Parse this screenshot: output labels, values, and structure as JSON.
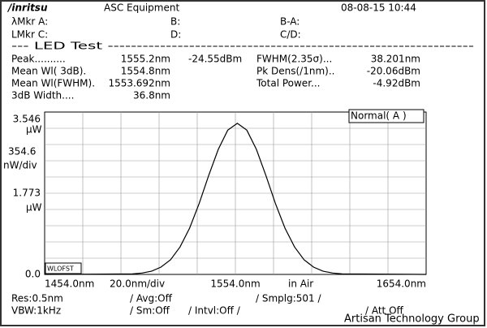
{
  "header": {
    "logo": "/inritsu",
    "title": "ASC Equipment",
    "datetime": "08-08-15 10:44"
  },
  "markers": {
    "a": "λMkr  A:",
    "b": "B:",
    "ba": "B-A:",
    "c": "LMkr  C:",
    "d": "D:",
    "cd": "C/D:"
  },
  "section": "--- LED Test ---------------------------------------------------------------",
  "results": [
    [
      "Peak..........",
      "1555.2nm",
      "-24.55dBm",
      "FWHM(2.35σ)...",
      "38.201nm"
    ],
    [
      "Mean Wl( 3dB).",
      "1554.8nm",
      "",
      "Pk Dens(/1nm)..",
      "-20.06dBm"
    ],
    [
      "Mean Wl(FWHM).",
      "1553.692nm",
      "",
      "Total Power...",
      "-4.92dBm"
    ],
    [
      "3dB Width....",
      "36.8nm",
      "",
      "",
      ""
    ]
  ],
  "plot": {
    "type": "line",
    "mode": "Normal( A )",
    "offset_label": "WLOFST",
    "y_unit_top": "µW",
    "y_div": "354.6",
    "y_div_unit": "nW/div",
    "y_unit_mid": "µW",
    "x_div": "20.0nm/div",
    "medium": "in Air",
    "xlim": [
      1454,
      1654
    ],
    "ylim": [
      0,
      3.546
    ],
    "yticks": [
      3.546,
      1.773,
      {
        "value": 0,
        "label": "0.0"
      }
    ],
    "xticks": [
      {
        "value": 1454,
        "label": "1454.0nm"
      },
      {
        "value": 1554,
        "label": "1554.0nm"
      },
      {
        "value": 1654,
        "label": "1654.0nm"
      }
    ],
    "color": "#000000",
    "x": [
      1454,
      1500,
      1505,
      1510,
      1515,
      1520,
      1525,
      1530,
      1535,
      1540,
      1545,
      1550,
      1555,
      1560,
      1565,
      1570,
      1575,
      1580,
      1585,
      1590,
      1595,
      1600,
      1605,
      1610,
      1654
    ],
    "values": [
      0,
      0.01,
      0.03,
      0.07,
      0.16,
      0.32,
      0.6,
      1.01,
      1.55,
      2.16,
      2.73,
      3.15,
      3.3,
      3.15,
      2.73,
      2.16,
      1.55,
      1.01,
      0.6,
      0.32,
      0.16,
      0.07,
      0.03,
      0.01,
      0
    ]
  },
  "settings": {
    "res": "Res:0.5nm",
    "avg": "/   Avg:Off",
    "smplg": "/   Smplg:501   /",
    "vbw": "VBW:1kHz",
    "sm": "/ Sm:Off",
    "intvl": "/ Intvl:Off /",
    "att": "/ Att Off"
  },
  "watermark": "Artisan Technology Group"
}
